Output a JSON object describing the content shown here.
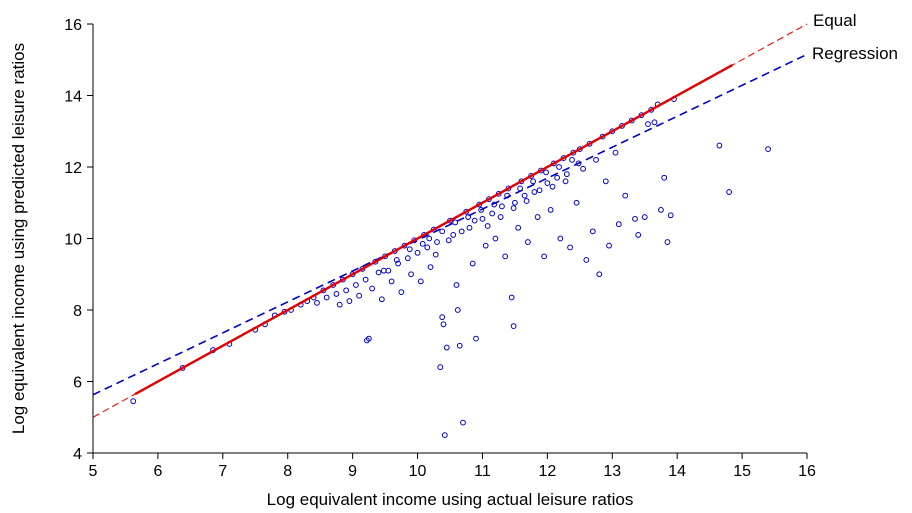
{
  "chart_data": {
    "type": "scatter",
    "title": "",
    "xlabel": "Log equivalent income using actual leisure ratios",
    "ylabel": "Log equivalent income using predicted leisure ratios",
    "xlim": [
      5,
      16
    ],
    "ylim": [
      4,
      16
    ],
    "xticks": [
      "5",
      "6",
      "7",
      "8",
      "9",
      "10",
      "11",
      "12",
      "13",
      "14",
      "15",
      "16"
    ],
    "yticks": [
      "4",
      "6",
      "8",
      "10",
      "12",
      "14",
      "16"
    ],
    "grid": false,
    "legend_position": "top-right, at line ends",
    "point_color": "#0000cc",
    "series": [
      {
        "name": "Equal",
        "kind": "line",
        "style": "dashed",
        "color": "#ff0000",
        "x": [
          5,
          16
        ],
        "y": [
          5,
          16
        ]
      },
      {
        "name": "Regression",
        "kind": "line",
        "style": "dashed",
        "color": "#0000cc",
        "x": [
          5,
          16
        ],
        "y": [
          5.63,
          15.15
        ]
      }
    ],
    "highlight_band": {
      "color": "#e00000",
      "x": [
        5.65,
        14.85
      ],
      "note": "solid red segment drawn over the diagonal where points lie on it"
    },
    "points": [
      [
        5.62,
        5.45
      ],
      [
        6.38,
        6.38
      ],
      [
        6.85,
        6.88
      ],
      [
        7.1,
        7.05
      ],
      [
        7.5,
        7.45
      ],
      [
        7.65,
        7.6
      ],
      [
        7.8,
        7.85
      ],
      [
        7.95,
        7.95
      ],
      [
        8.05,
        8.0
      ],
      [
        8.2,
        8.15
      ],
      [
        8.3,
        8.25
      ],
      [
        8.4,
        8.35
      ],
      [
        8.45,
        8.2
      ],
      [
        8.55,
        8.55
      ],
      [
        8.6,
        8.35
      ],
      [
        8.7,
        8.7
      ],
      [
        8.75,
        8.45
      ],
      [
        8.8,
        8.15
      ],
      [
        8.85,
        8.85
      ],
      [
        8.9,
        8.55
      ],
      [
        8.95,
        8.25
      ],
      [
        9.0,
        9.0
      ],
      [
        9.05,
        8.7
      ],
      [
        9.1,
        8.4
      ],
      [
        9.15,
        9.15
      ],
      [
        9.2,
        8.85
      ],
      [
        9.25,
        7.2
      ],
      [
        9.22,
        7.15
      ],
      [
        9.3,
        8.6
      ],
      [
        9.35,
        9.35
      ],
      [
        9.4,
        9.05
      ],
      [
        9.45,
        8.3
      ],
      [
        9.5,
        9.5
      ],
      [
        9.55,
        9.1
      ],
      [
        9.6,
        8.8
      ],
      [
        9.65,
        9.65
      ],
      [
        9.7,
        9.3
      ],
      [
        9.75,
        8.5
      ],
      [
        9.8,
        9.8
      ],
      [
        9.85,
        9.45
      ],
      [
        9.9,
        9.0
      ],
      [
        9.95,
        9.95
      ],
      [
        10.0,
        9.6
      ],
      [
        10.05,
        8.8
      ],
      [
        10.1,
        10.1
      ],
      [
        10.15,
        9.75
      ],
      [
        10.2,
        9.2
      ],
      [
        10.25,
        10.25
      ],
      [
        10.3,
        9.9
      ],
      [
        10.35,
        6.4
      ],
      [
        10.38,
        7.8
      ],
      [
        10.4,
        7.6
      ],
      [
        10.42,
        4.5
      ],
      [
        10.45,
        6.95
      ],
      [
        10.5,
        10.5
      ],
      [
        10.55,
        10.1
      ],
      [
        10.6,
        8.7
      ],
      [
        10.62,
        8.0
      ],
      [
        10.65,
        7.0
      ],
      [
        10.7,
        4.85
      ],
      [
        10.75,
        10.75
      ],
      [
        10.8,
        10.3
      ],
      [
        10.85,
        9.3
      ],
      [
        10.9,
        7.2
      ],
      [
        10.95,
        10.95
      ],
      [
        11.0,
        10.55
      ],
      [
        11.05,
        9.8
      ],
      [
        11.1,
        11.1
      ],
      [
        11.15,
        10.7
      ],
      [
        11.2,
        10.0
      ],
      [
        11.25,
        11.25
      ],
      [
        11.3,
        10.9
      ],
      [
        11.35,
        9.5
      ],
      [
        11.4,
        11.4
      ],
      [
        11.45,
        8.35
      ],
      [
        11.48,
        7.55
      ],
      [
        11.5,
        11.0
      ],
      [
        11.55,
        10.3
      ],
      [
        11.6,
        11.6
      ],
      [
        11.65,
        11.2
      ],
      [
        11.7,
        9.9
      ],
      [
        11.75,
        11.75
      ],
      [
        11.8,
        11.3
      ],
      [
        11.85,
        10.6
      ],
      [
        11.9,
        11.9
      ],
      [
        11.95,
        9.5
      ],
      [
        12.0,
        11.55
      ],
      [
        12.05,
        10.8
      ],
      [
        12.1,
        12.1
      ],
      [
        12.15,
        11.7
      ],
      [
        12.2,
        10.0
      ],
      [
        12.25,
        12.25
      ],
      [
        12.3,
        11.8
      ],
      [
        12.35,
        9.75
      ],
      [
        12.4,
        12.4
      ],
      [
        12.45,
        11.0
      ],
      [
        12.5,
        12.5
      ],
      [
        12.55,
        11.95
      ],
      [
        12.6,
        9.4
      ],
      [
        12.65,
        12.65
      ],
      [
        12.7,
        10.2
      ],
      [
        12.75,
        12.2
      ],
      [
        12.8,
        9.0
      ],
      [
        12.85,
        12.85
      ],
      [
        12.9,
        11.6
      ],
      [
        12.95,
        9.8
      ],
      [
        13.0,
        13.0
      ],
      [
        13.05,
        12.4
      ],
      [
        13.1,
        10.4
      ],
      [
        13.15,
        13.15
      ],
      [
        13.2,
        11.2
      ],
      [
        13.3,
        13.3
      ],
      [
        13.35,
        10.55
      ],
      [
        13.4,
        10.1
      ],
      [
        13.45,
        13.45
      ],
      [
        13.5,
        10.6
      ],
      [
        13.6,
        13.6
      ],
      [
        13.55,
        13.2
      ],
      [
        13.65,
        13.25
      ],
      [
        13.7,
        13.75
      ],
      [
        13.75,
        10.8
      ],
      [
        13.8,
        11.7
      ],
      [
        13.85,
        9.9
      ],
      [
        13.9,
        10.65
      ],
      [
        13.95,
        13.9
      ],
      [
        14.65,
        12.6
      ],
      [
        14.8,
        11.3
      ],
      [
        15.4,
        12.5
      ],
      [
        9.48,
        9.1
      ],
      [
        9.68,
        9.4
      ],
      [
        9.88,
        9.7
      ],
      [
        10.08,
        9.85
      ],
      [
        10.28,
        9.55
      ],
      [
        10.48,
        9.95
      ],
      [
        10.68,
        10.2
      ],
      [
        10.88,
        10.5
      ],
      [
        11.08,
        10.35
      ],
      [
        11.28,
        10.6
      ],
      [
        11.48,
        10.85
      ],
      [
        11.68,
        11.05
      ],
      [
        11.88,
        11.35
      ],
      [
        12.08,
        11.45
      ],
      [
        12.28,
        11.6
      ],
      [
        12.48,
        12.1
      ],
      [
        10.18,
        10.0
      ],
      [
        10.38,
        10.2
      ],
      [
        10.58,
        10.45
      ],
      [
        10.78,
        10.6
      ],
      [
        10.98,
        10.8
      ],
      [
        11.18,
        10.95
      ],
      [
        11.38,
        11.2
      ],
      [
        11.58,
        11.4
      ],
      [
        11.78,
        11.6
      ],
      [
        11.98,
        11.85
      ],
      [
        12.18,
        12.0
      ],
      [
        12.38,
        12.2
      ]
    ]
  }
}
